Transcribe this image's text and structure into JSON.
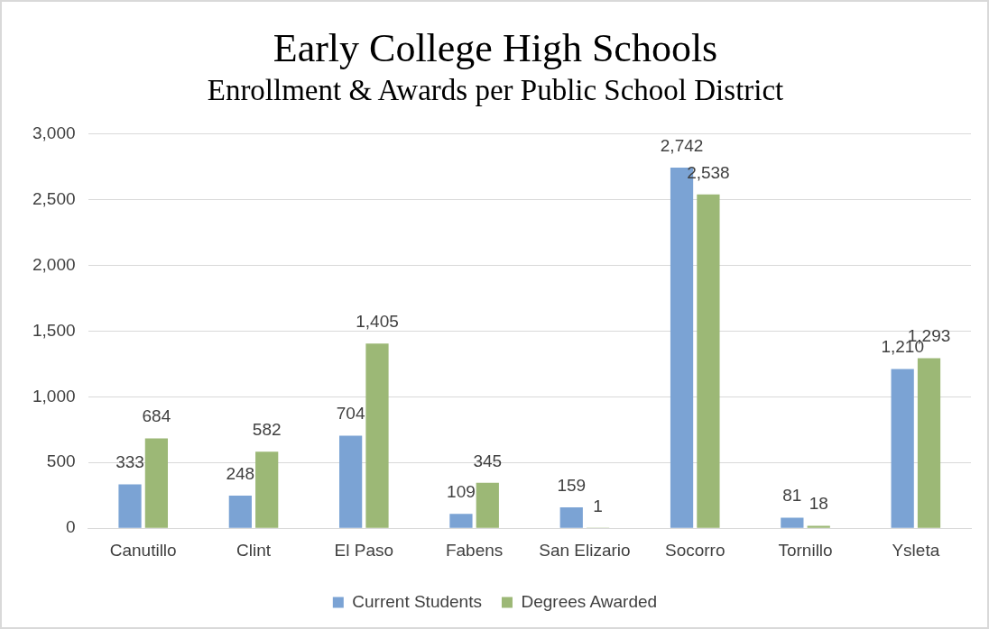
{
  "chart_data": {
    "type": "bar",
    "title": "Early College High Schools",
    "subtitle": "Enrollment & Awards per Public School District",
    "categories": [
      "Canutillo",
      "Clint",
      "El Paso",
      "Fabens",
      "San Elizario",
      "Socorro",
      "Tornillo",
      "Ysleta"
    ],
    "series": [
      {
        "name": "Current Students",
        "color": "#7ba3d4",
        "values": [
          333,
          248,
          704,
          109,
          159,
          2742,
          81,
          1210
        ],
        "value_labels": [
          "333",
          "248",
          "704",
          "109",
          "159",
          "2,742",
          "81",
          "1,210"
        ]
      },
      {
        "name": "Degrees Awarded",
        "color": "#9cb876",
        "values": [
          684,
          582,
          1405,
          345,
          1,
          2538,
          18,
          1293
        ],
        "value_labels": [
          "684",
          "582",
          "1,405",
          "345",
          "1",
          "2,538",
          "18",
          "1,293"
        ]
      }
    ],
    "ylim": [
      0,
      3000
    ],
    "yticks": [
      {
        "value": 0,
        "label": "0"
      },
      {
        "value": 500,
        "label": "500"
      },
      {
        "value": 1000,
        "label": "1,000"
      },
      {
        "value": 1500,
        "label": "1,500"
      },
      {
        "value": 2000,
        "label": "2,000"
      },
      {
        "value": 2500,
        "label": "2,500"
      },
      {
        "value": 3000,
        "label": "3,000"
      }
    ],
    "grid": "y",
    "legend": "bottom"
  }
}
